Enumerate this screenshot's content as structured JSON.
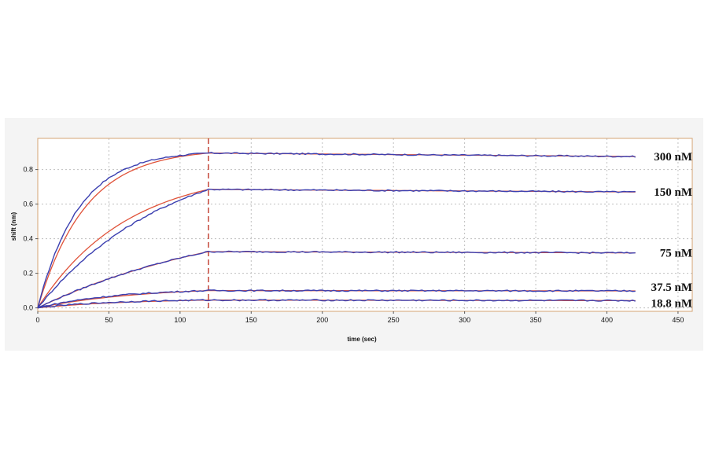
{
  "chart_data": {
    "type": "line",
    "xlabel": "time (sec)",
    "ylabel": "shift (nm)",
    "xlim": [
      0,
      460
    ],
    "ylim": [
      -0.02,
      0.98
    ],
    "xticks": [
      0,
      50,
      100,
      150,
      200,
      250,
      300,
      350,
      400,
      450
    ],
    "yticks": [
      0.0,
      0.2,
      0.4,
      0.6,
      0.8
    ],
    "ytick_labels": [
      "0.0",
      "0.2",
      "0.4",
      "0.6",
      "0.8"
    ],
    "grid": true,
    "dissociation_start": 120,
    "curve_end": 420,
    "colors": {
      "data": "#3b3fb0",
      "fit": "#e0533a",
      "marker": "#c0392b",
      "frame": "#d4a373"
    },
    "series": [
      {
        "name": "300 nM",
        "plateau": 0.895,
        "end": 0.875,
        "k_data": 0.035,
        "k_fit": 0.03
      },
      {
        "name": "150 nM",
        "plateau": 0.685,
        "end": 0.67,
        "k_data": 0.011,
        "k_fit": 0.016
      },
      {
        "name": "75 nM",
        "plateau": 0.325,
        "end": 0.318,
        "k_data": 0.007,
        "k_fit": 0.007
      },
      {
        "name": "37.5 nM",
        "plateau": 0.1,
        "end": 0.098,
        "k_data": 0.018,
        "k_fit": 0.014
      },
      {
        "name": "18.8 nM",
        "plateau": 0.045,
        "end": 0.042,
        "k_data": 0.02,
        "k_fit": 0.015
      }
    ]
  }
}
